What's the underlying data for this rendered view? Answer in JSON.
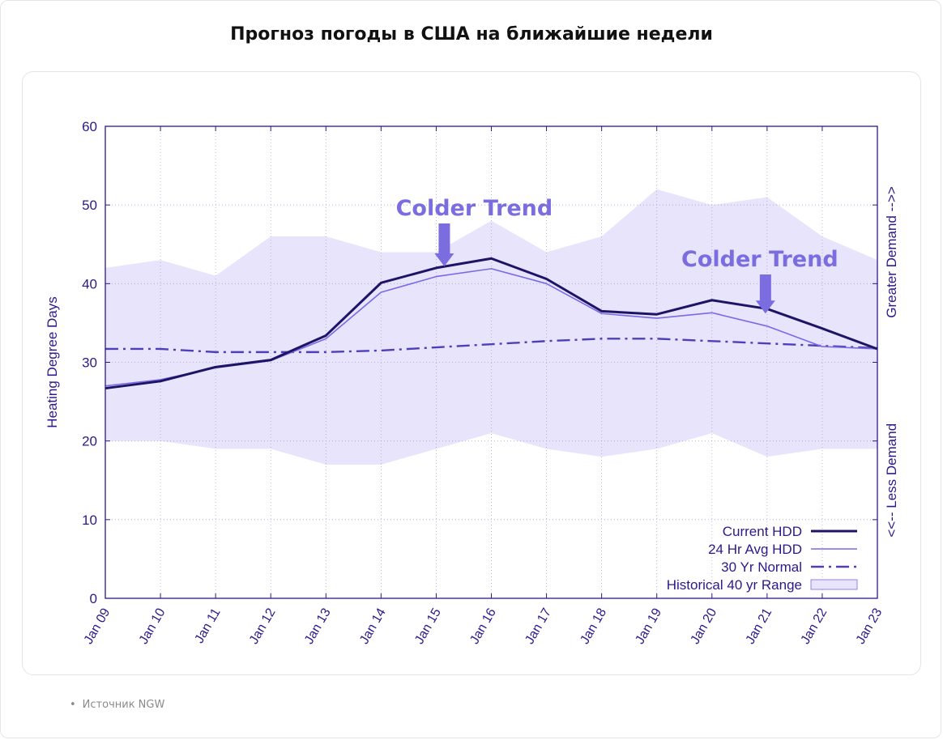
{
  "page": {
    "title": "Прогноз погоды в США на ближайшие недели",
    "source_bullet": "•",
    "source": "Источник NGW"
  },
  "colors": {
    "axis": "#2a1a8a",
    "current": "#1e1466",
    "avg24": "#7a6ae6",
    "normal": "#4d3fb8",
    "range_fill": "#e7e4fb",
    "annotation": "#7b6de0"
  },
  "chart_data": {
    "type": "line",
    "title": "",
    "xlabel": "",
    "ylabel": "Heating Degree Days",
    "y2label_top": "Greater Demand -->>",
    "y2label_bottom": "<<-- Less Demand",
    "ylim": [
      0,
      60
    ],
    "yticks": [
      "0",
      "10",
      "20",
      "30",
      "40",
      "50",
      "60"
    ],
    "grid": true,
    "legend_position": "bottom-right",
    "categories": [
      "Jan 09",
      "Jan 10",
      "Jan 11",
      "Jan 12",
      "Jan 13",
      "Jan 14",
      "Jan 15",
      "Jan 16",
      "Jan 17",
      "Jan 18",
      "Jan 19",
      "Jan 20",
      "Jan 21",
      "Jan 22",
      "Jan 23"
    ],
    "series": [
      {
        "name": "Current HDD",
        "style": "solid-thick",
        "values": [
          26.7,
          27.6,
          29.4,
          30.3,
          33.4,
          40.1,
          42.0,
          43.2,
          40.6,
          36.5,
          36.1,
          37.9,
          36.8,
          34.3,
          31.7
        ]
      },
      {
        "name": "24 Hr Avg HDD",
        "style": "solid-thin",
        "values": [
          27.0,
          27.8,
          29.3,
          30.2,
          33.0,
          38.9,
          40.9,
          41.9,
          40.0,
          36.2,
          35.6,
          36.3,
          34.6,
          32.0,
          31.7
        ]
      },
      {
        "name": "30 Yr Normal",
        "style": "dash-dot",
        "values": [
          31.7,
          31.7,
          31.3,
          31.3,
          31.3,
          31.5,
          31.9,
          32.3,
          32.7,
          33.0,
          33.0,
          32.7,
          32.4,
          32.1,
          31.8
        ]
      },
      {
        "name": "Historical 40 yr Range",
        "style": "band",
        "upper": [
          42,
          43,
          41,
          46,
          46,
          44,
          44,
          48,
          44,
          46,
          52,
          50,
          51,
          46,
          43
        ],
        "lower": [
          20,
          20,
          19,
          19,
          17,
          17,
          19,
          21,
          19,
          18,
          19,
          21,
          18,
          19,
          19
        ]
      }
    ],
    "annotations": [
      {
        "text": "Colder Trend",
        "at_x": "Jan 15",
        "arrow_to_y": 42.2
      },
      {
        "text": "Colder Trend",
        "at_x": "Jan 21",
        "arrow_to_y": 36.2
      }
    ]
  }
}
